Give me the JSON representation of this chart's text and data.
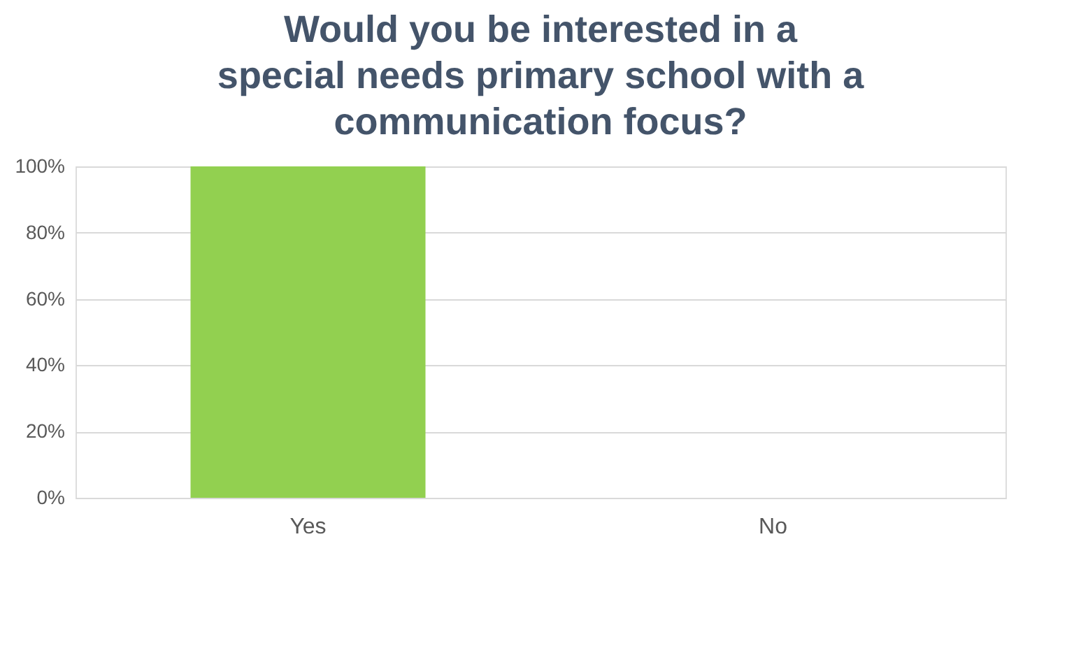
{
  "chart_data": {
    "type": "bar",
    "title": [
      "Would you be interested in a",
      "special needs primary school with a",
      "communication focus?"
    ],
    "categories": [
      "Yes",
      "No"
    ],
    "values": [
      100,
      0
    ],
    "color": "#92d050",
    "ylim": [
      0,
      100
    ],
    "yticks": [
      {
        "value": 0,
        "label": "0%"
      },
      {
        "value": 20,
        "label": "20%"
      },
      {
        "value": 40,
        "label": "40%"
      },
      {
        "value": 60,
        "label": "60%"
      },
      {
        "value": 80,
        "label": "80%"
      },
      {
        "value": 100,
        "label": "100%"
      }
    ],
    "grid": "y"
  }
}
